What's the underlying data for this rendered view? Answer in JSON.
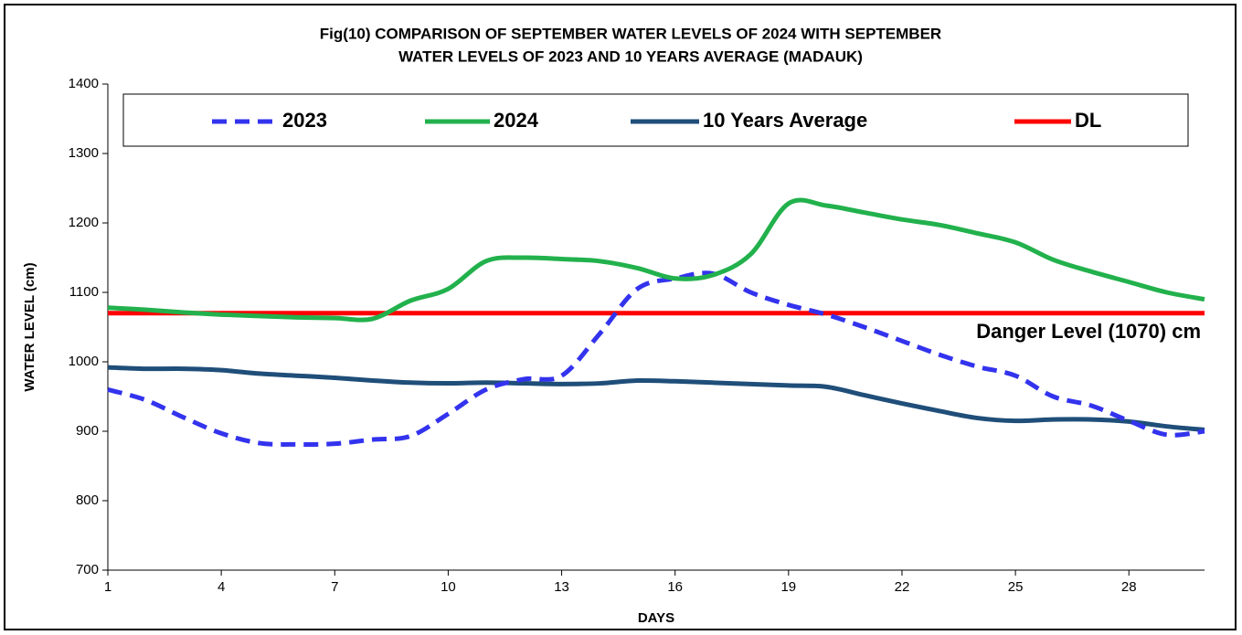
{
  "chart_data": {
    "type": "line",
    "title_lines": [
      "Fig(10)  COMPARISON OF SEPTEMBER WATER LEVELS OF  2024  WITH SEPTEMBER",
      "WATER LEVELS OF 2023  AND 10 YEARS  AVERAGE  (MADAUK)"
    ],
    "x_label": "DAYS",
    "y_label": "WATER LEVEL (cm)",
    "annotation": "Danger Level (1070) cm",
    "x": [
      1,
      2,
      3,
      4,
      5,
      6,
      7,
      8,
      9,
      10,
      11,
      12,
      13,
      14,
      15,
      16,
      17,
      18,
      19,
      20,
      21,
      22,
      23,
      24,
      25,
      26,
      27,
      28,
      29,
      30
    ],
    "xlim": [
      1,
      30
    ],
    "xticks": [
      1,
      4,
      7,
      10,
      13,
      16,
      19,
      22,
      25,
      28
    ],
    "ylim": [
      700,
      1400
    ],
    "yticks": [
      700,
      800,
      900,
      1000,
      1100,
      1200,
      1300,
      1400
    ],
    "series": [
      {
        "name": "2023",
        "color": "#3333ee",
        "dashed": true,
        "values": [
          960,
          945,
          920,
          897,
          883,
          881,
          882,
          888,
          893,
          925,
          960,
          975,
          980,
          1040,
          1105,
          1120,
          1127,
          1100,
          1082,
          1068,
          1050,
          1030,
          1010,
          993,
          980,
          950,
          937,
          915,
          895,
          900
        ]
      },
      {
        "name": "2024",
        "color": "#22b14c",
        "dashed": false,
        "values": [
          1078,
          1075,
          1071,
          1068,
          1066,
          1064,
          1063,
          1062,
          1088,
          1105,
          1145,
          1150,
          1148,
          1145,
          1135,
          1120,
          1125,
          1155,
          1228,
          1225,
          1215,
          1205,
          1197,
          1185,
          1172,
          1147,
          1130,
          1115,
          1100,
          1090
        ]
      },
      {
        "name": "10 Years Average",
        "color": "#1f4e79",
        "dashed": false,
        "values": [
          992,
          990,
          990,
          988,
          983,
          980,
          977,
          973,
          970,
          969,
          970,
          969,
          968,
          969,
          973,
          972,
          970,
          968,
          966,
          964,
          952,
          940,
          929,
          919,
          915,
          917,
          917,
          914,
          907,
          902
        ]
      },
      {
        "name": "DL",
        "color": "#ff0000",
        "dashed": false,
        "values": [
          1070,
          1070,
          1070,
          1070,
          1070,
          1070,
          1070,
          1070,
          1070,
          1070,
          1070,
          1070,
          1070,
          1070,
          1070,
          1070,
          1070,
          1070,
          1070,
          1070,
          1070,
          1070,
          1070,
          1070,
          1070,
          1070,
          1070,
          1070,
          1070,
          1070
        ]
      }
    ]
  }
}
